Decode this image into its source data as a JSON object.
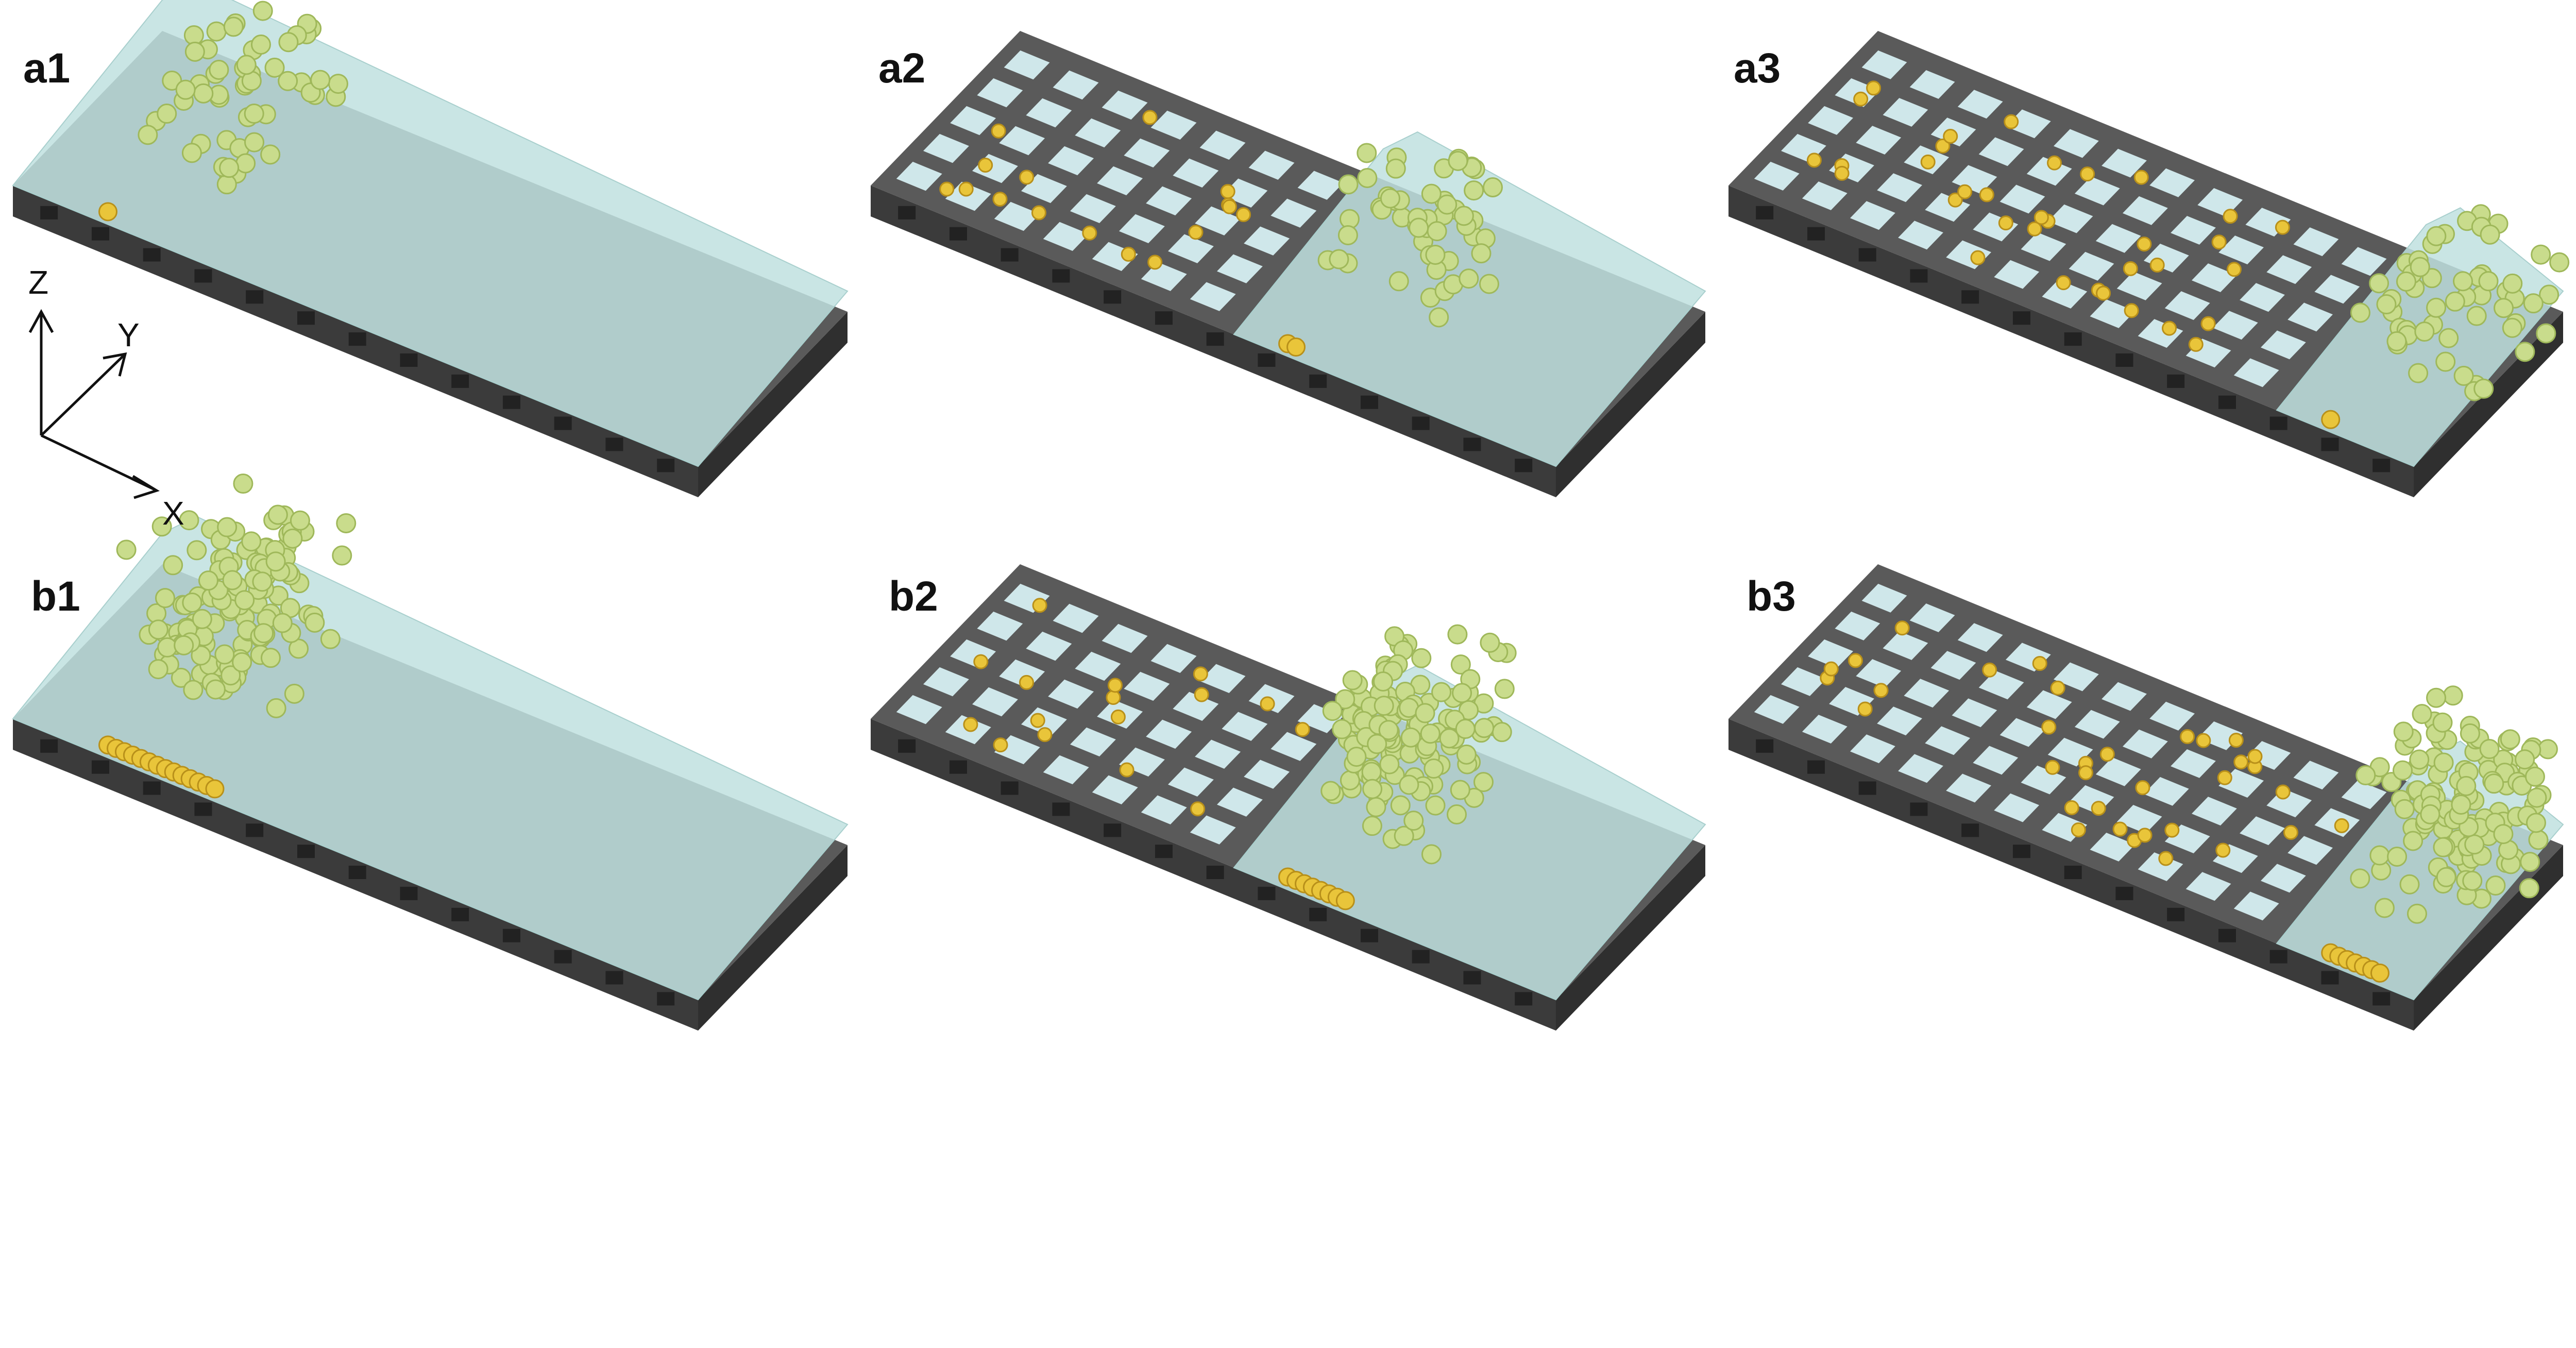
{
  "figure": {
    "panels": [
      {
        "id": "a1",
        "label": "a1",
        "row": 0,
        "col": 0,
        "gridded": false,
        "particles": "sparse-cloud",
        "deposits": 1
      },
      {
        "id": "a2",
        "label": "a2",
        "row": 0,
        "col": 1,
        "gridded": true,
        "particles": "sparse-column",
        "deposits": 2
      },
      {
        "id": "a3",
        "label": "a3",
        "row": 0,
        "col": 2,
        "gridded": true,
        "particles": "sparse-column",
        "deposits": 1
      },
      {
        "id": "b1",
        "label": "b1",
        "row": 1,
        "col": 0,
        "gridded": false,
        "particles": "dense-cloud",
        "deposits": 14
      },
      {
        "id": "b2",
        "label": "b2",
        "row": 1,
        "col": 1,
        "gridded": true,
        "particles": "dense-cloud",
        "deposits": 8
      },
      {
        "id": "b3",
        "label": "b3",
        "row": 1,
        "col": 2,
        "gridded": true,
        "particles": "dense-cloud",
        "deposits": 7
      }
    ],
    "axes": {
      "z": "Z",
      "y": "Y",
      "x": "X"
    },
    "colors": {
      "slab_top": "#5a5a5a",
      "slab_side": "#3b3b3b",
      "cell": "#cfe7ea",
      "fluid": "#bfe0df",
      "particle": "#c9dc8c",
      "particle_edge": "#9fb85a",
      "deposit": "#e9c53a",
      "deposit_edge": "#b8901a"
    }
  }
}
